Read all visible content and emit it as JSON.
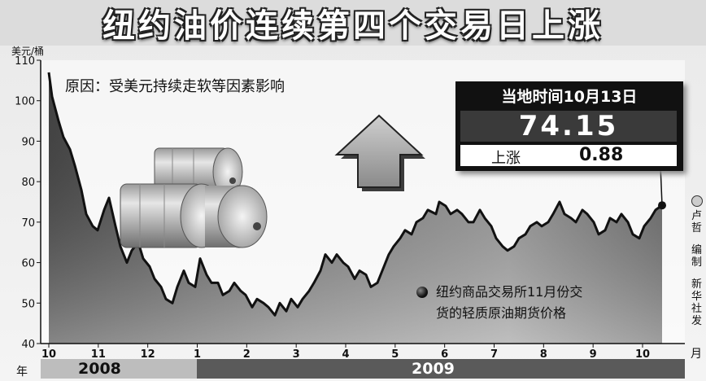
{
  "title": "纽约油价连续第四个交易日上涨",
  "unit": "美元/桶",
  "cause": "原因：受美元持续走软等因素影响",
  "info": {
    "date": "当地时间10月13日",
    "price": "74.15",
    "change_label": "上涨",
    "change_value": "0.88"
  },
  "legend": [
    "纽约商品交易所11月份交",
    "货的轻质原油期货价格"
  ],
  "credit": [
    "卢",
    "哲",
    "编",
    "制",
    "新",
    "华",
    "社",
    "发"
  ],
  "year_axis_label": "年",
  "month_axis_label": "月",
  "years": [
    "2008",
    "2009"
  ],
  "colors": {
    "area_dark": "#4a4a4a",
    "area_light": "#f2f2f2",
    "line": "#111111",
    "year2008_bar": "#bdbdbd",
    "year2009_bar": "#5a5a5a"
  },
  "chart_data": {
    "type": "area",
    "xlabel": "月",
    "ylabel": "美元/桶",
    "ylim": [
      40,
      110
    ],
    "yticks": [
      40,
      50,
      60,
      70,
      80,
      90,
      100,
      110
    ],
    "month_ticks": [
      "10",
      "11",
      "12",
      "1",
      "2",
      "3",
      "4",
      "5",
      "6",
      "7",
      "8",
      "9",
      "10"
    ],
    "grid": false,
    "x": [
      "2008-10-01",
      "2008-10-03",
      "2008-10-07",
      "2008-10-10",
      "2008-10-14",
      "2008-10-17",
      "2008-10-21",
      "2008-10-24",
      "2008-10-28",
      "2008-10-31",
      "2008-11-04",
      "2008-11-07",
      "2008-11-11",
      "2008-11-14",
      "2008-11-18",
      "2008-11-21",
      "2008-11-25",
      "2008-11-28",
      "2008-12-02",
      "2008-12-05",
      "2008-12-09",
      "2008-12-12",
      "2008-12-16",
      "2008-12-19",
      "2008-12-23",
      "2008-12-26",
      "2008-12-30",
      "2009-01-02",
      "2009-01-06",
      "2009-01-09",
      "2009-01-13",
      "2009-01-16",
      "2009-01-20",
      "2009-01-23",
      "2009-01-27",
      "2009-01-30",
      "2009-02-03",
      "2009-02-06",
      "2009-02-10",
      "2009-02-13",
      "2009-02-17",
      "2009-02-20",
      "2009-02-24",
      "2009-02-27",
      "2009-03-03",
      "2009-03-06",
      "2009-03-10",
      "2009-03-13",
      "2009-03-17",
      "2009-03-20",
      "2009-03-24",
      "2009-03-27",
      "2009-03-31",
      "2009-04-03",
      "2009-04-07",
      "2009-04-10",
      "2009-04-14",
      "2009-04-17",
      "2009-04-21",
      "2009-04-24",
      "2009-04-28",
      "2009-05-01",
      "2009-05-05",
      "2009-05-08",
      "2009-05-12",
      "2009-05-15",
      "2009-05-19",
      "2009-05-22",
      "2009-05-27",
      "2009-05-29",
      "2009-06-02",
      "2009-06-05",
      "2009-06-09",
      "2009-06-12",
      "2009-06-16",
      "2009-06-19",
      "2009-06-23",
      "2009-06-26",
      "2009-06-30",
      "2009-07-03",
      "2009-07-07",
      "2009-07-10",
      "2009-07-14",
      "2009-07-17",
      "2009-07-21",
      "2009-07-24",
      "2009-07-28",
      "2009-07-31",
      "2009-08-04",
      "2009-08-07",
      "2009-08-11",
      "2009-08-14",
      "2009-08-18",
      "2009-08-21",
      "2009-08-25",
      "2009-08-28",
      "2009-09-01",
      "2009-09-04",
      "2009-09-08",
      "2009-09-11",
      "2009-09-15",
      "2009-09-18",
      "2009-09-22",
      "2009-09-25",
      "2009-09-29",
      "2009-10-02",
      "2009-10-06",
      "2009-10-09",
      "2009-10-13"
    ],
    "y": [
      107,
      101,
      95,
      91,
      88,
      84,
      78,
      72,
      69,
      68,
      73,
      76,
      69,
      64,
      60,
      63,
      65,
      61,
      59,
      56,
      54,
      51,
      50,
      54,
      58,
      55,
      54,
      61,
      57,
      55,
      55,
      52,
      53,
      55,
      53,
      52,
      49,
      51,
      50,
      49,
      47,
      50,
      48,
      51,
      49,
      51,
      53,
      55,
      58,
      62,
      60,
      62,
      60,
      59,
      56,
      58,
      57,
      54,
      55,
      58,
      62,
      64,
      66,
      68,
      67,
      70,
      71,
      73,
      72,
      75,
      74,
      72,
      73,
      72,
      70,
      70,
      73,
      71,
      69,
      66,
      64,
      63,
      64,
      66,
      67,
      69,
      70,
      69,
      70,
      72,
      75,
      72,
      71,
      70,
      73,
      72,
      70,
      67,
      68,
      71,
      70,
      72,
      70,
      67,
      66,
      69,
      71,
      73,
      74.15
    ]
  }
}
